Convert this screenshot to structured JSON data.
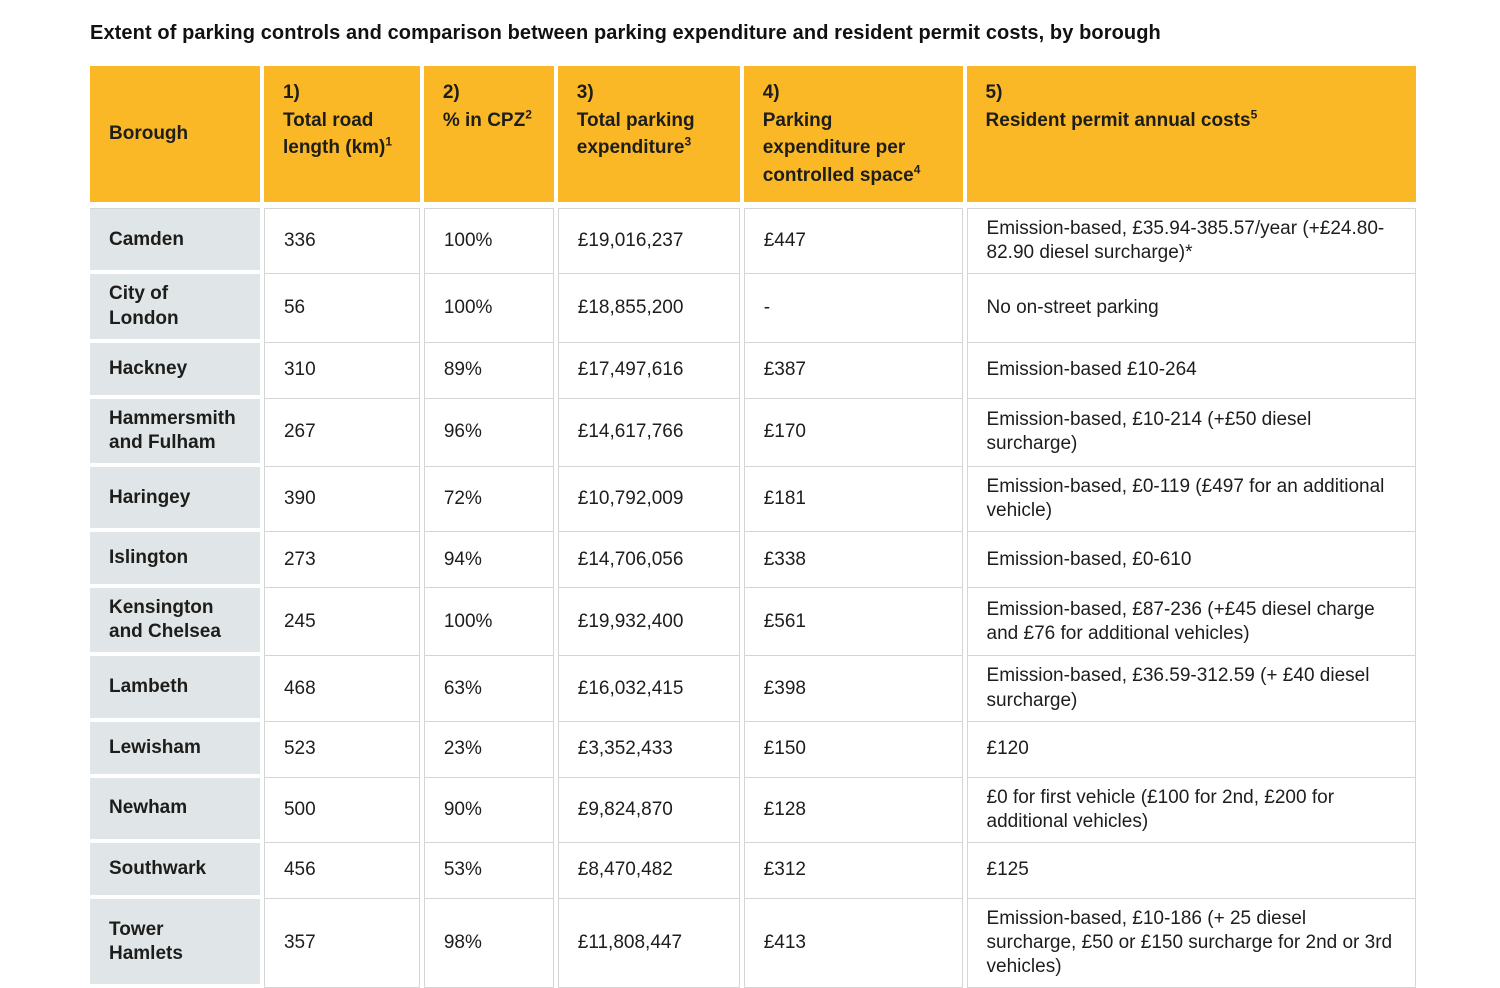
{
  "title": "Extent of parking controls and comparison between parking expenditure and resident permit costs, by borough",
  "colors": {
    "header_bg": "#FBB826",
    "borough_bg": "#E0E6E7",
    "grid_line": "#D5D5D5",
    "text": "#1D1D1B"
  },
  "table": {
    "headers": [
      {
        "key": "borough",
        "prefix": "",
        "label": "Borough",
        "sup": ""
      },
      {
        "key": "road_length",
        "prefix": "1)",
        "label": "Total road\nlength (km)",
        "sup": "1"
      },
      {
        "key": "cpz",
        "prefix": "2)",
        "label": "% in CPZ",
        "sup": "2"
      },
      {
        "key": "expenditure",
        "prefix": "3)",
        "label": "Total parking\nexpenditure",
        "sup": "3"
      },
      {
        "key": "per_space",
        "prefix": "4)",
        "label": "Parking\nexpenditure per\ncontrolled space",
        "sup": "4"
      },
      {
        "key": "permit",
        "prefix": "5)",
        "label": "Resident permit annual costs",
        "sup": "5"
      }
    ],
    "rows": [
      {
        "borough": "Camden",
        "road_length": "336",
        "cpz": "100%",
        "expenditure": "£19,016,237",
        "per_space": "£447",
        "permit": "Emission-based, £35.94-385.57/year (+£24.80-82.90 diesel surcharge)*"
      },
      {
        "borough": "City of London",
        "road_length": "56",
        "cpz": "100%",
        "expenditure": "£18,855,200",
        "per_space": "-",
        "permit": "No on-street parking"
      },
      {
        "borough": "Hackney",
        "road_length": "310",
        "cpz": "89%",
        "expenditure": "£17,497,616",
        "per_space": "£387",
        "permit": "Emission-based £10-264"
      },
      {
        "borough": "Hammersmith\nand Fulham",
        "road_length": "267",
        "cpz": "96%",
        "expenditure": "£14,617,766",
        "per_space": "£170",
        "permit": "Emission-based, £10-214 (+£50 diesel surcharge)"
      },
      {
        "borough": "Haringey",
        "road_length": "390",
        "cpz": "72%",
        "expenditure": "£10,792,009",
        "per_space": "£181",
        "permit": "Emission-based, £0-119 (£497 for an additional vehicle)"
      },
      {
        "borough": "Islington",
        "road_length": "273",
        "cpz": "94%",
        "expenditure": "£14,706,056",
        "per_space": "£338",
        "permit": "Emission-based, £0-610"
      },
      {
        "borough": "Kensington\nand Chelsea",
        "road_length": "245",
        "cpz": "100%",
        "expenditure": "£19,932,400",
        "per_space": "£561",
        "permit": "Emission-based, £87-236 (+£45 diesel charge and £76 for additional vehicles)"
      },
      {
        "borough": "Lambeth",
        "road_length": "468",
        "cpz": "63%",
        "expenditure": "£16,032,415",
        "per_space": "£398",
        "permit": "Emission-based, £36.59-312.59 (+ £40 diesel surcharge)"
      },
      {
        "borough": "Lewisham",
        "road_length": "523",
        "cpz": "23%",
        "expenditure": "£3,352,433",
        "per_space": "£150",
        "permit": "£120"
      },
      {
        "borough": "Newham",
        "road_length": "500",
        "cpz": "90%",
        "expenditure": "£9,824,870",
        "per_space": "£128",
        "permit": "£0 for first vehicle (£100 for 2nd, £200 for additional vehicles)"
      },
      {
        "borough": "Southwark",
        "road_length": "456",
        "cpz": "53%",
        "expenditure": "£8,470,482",
        "per_space": "£312",
        "permit": "£125"
      },
      {
        "borough": "Tower\nHamlets",
        "road_length": "357",
        "cpz": "98%",
        "expenditure": "£11,808,447",
        "per_space": "£413",
        "permit": "Emission-based, £10-186 (+ 25 diesel surcharge, £50 or £150 surcharge for 2nd or 3rd vehicles)"
      }
    ]
  }
}
